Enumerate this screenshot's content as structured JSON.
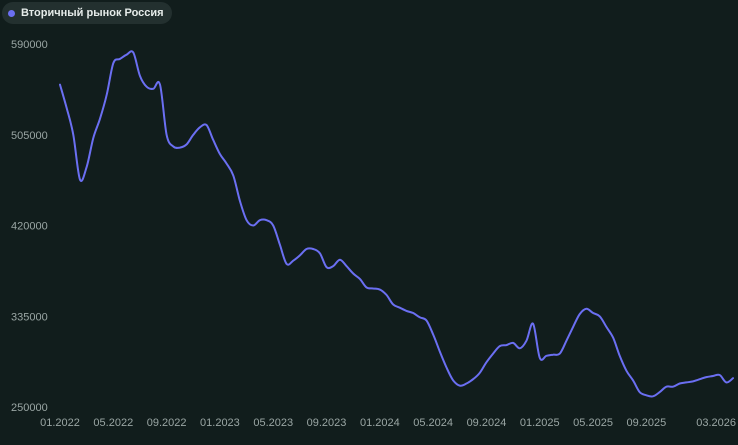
{
  "legend": {
    "label": "Вторичный рынок Россия",
    "color": "#6b6ff2"
  },
  "chart_data": {
    "type": "line",
    "title": "",
    "xlabel": "",
    "ylabel": "",
    "ylim": [
      250000,
      590000
    ],
    "yticks": [
      "590000",
      "505000",
      "420000",
      "335000",
      "250000"
    ],
    "yticks_values": [
      590000,
      505000,
      420000,
      335000,
      250000
    ],
    "xticks": [
      "01.2022",
      "05.2022",
      "09.2022",
      "01.2023",
      "05.2023",
      "09.2023",
      "01.2024",
      "05.2024",
      "09.2024",
      "01.2025",
      "05.2025",
      "09.2025",
      "03.2026"
    ],
    "xticks_index": [
      0,
      4,
      8,
      12,
      16,
      20,
      24,
      28,
      32,
      36,
      40,
      44,
      50
    ],
    "grid": false,
    "legend_position": "top-left",
    "series": [
      {
        "name": "Вторичный рынок Россия",
        "color": "#6b6ff2",
        "x": [
          0,
          0.5,
          1,
          1.5,
          2,
          2.5,
          3,
          3.5,
          4,
          4.5,
          5,
          5.5,
          6,
          6.5,
          7,
          7.5,
          8,
          8.5,
          9,
          9.5,
          10,
          10.5,
          11,
          11.5,
          12,
          12.5,
          13,
          13.5,
          14,
          14.5,
          15,
          15.5,
          16,
          16.5,
          17,
          17.5,
          18,
          18.5,
          19,
          19.5,
          20,
          20.5,
          21,
          21.5,
          22,
          22.5,
          23,
          23.5,
          24,
          24.5,
          25,
          25.5,
          26,
          26.5,
          27,
          27.5,
          28,
          28.5,
          29,
          29.5,
          30,
          30.5,
          31,
          31.5,
          32,
          32.5,
          33,
          33.5,
          34,
          34.5,
          35,
          35.5,
          36,
          36.5,
          37,
          37.5,
          38,
          38.5,
          39,
          39.5,
          40,
          40.5,
          41,
          41.5,
          42,
          42.5,
          43,
          43.5,
          44,
          44.5,
          45,
          45.5,
          46,
          46.5,
          47,
          47.5,
          48,
          48.5,
          49,
          49.5,
          50,
          50.5
        ],
        "values": [
          552000,
          530000,
          505000,
          463000,
          475000,
          502000,
          520000,
          542000,
          572000,
          576000,
          580000,
          582000,
          560000,
          550000,
          548000,
          552000,
          505000,
          494000,
          493000,
          496000,
          505000,
          512000,
          514000,
          500000,
          487000,
          478000,
          467000,
          443000,
          425000,
          420000,
          425000,
          425000,
          420000,
          402000,
          384000,
          387000,
          392000,
          398000,
          398000,
          394000,
          381000,
          382000,
          388000,
          382000,
          375000,
          370000,
          362000,
          361000,
          360000,
          355000,
          346000,
          343000,
          340000,
          338000,
          334000,
          331000,
          318000,
          302000,
          287000,
          275000,
          270000,
          272000,
          276000,
          282000,
          292000,
          300000,
          307000,
          308000,
          310000,
          305000,
          312000,
          328000,
          296000,
          298000,
          299000,
          300000,
          312000,
          325000,
          337000,
          342000,
          338000,
          335000,
          325000,
          315000,
          298000,
          284000,
          275000,
          264000,
          261000,
          260000,
          264000,
          269000,
          269000,
          272000,
          273000,
          274000,
          276000,
          278000,
          279000,
          280000,
          273000,
          277000
        ]
      }
    ]
  }
}
